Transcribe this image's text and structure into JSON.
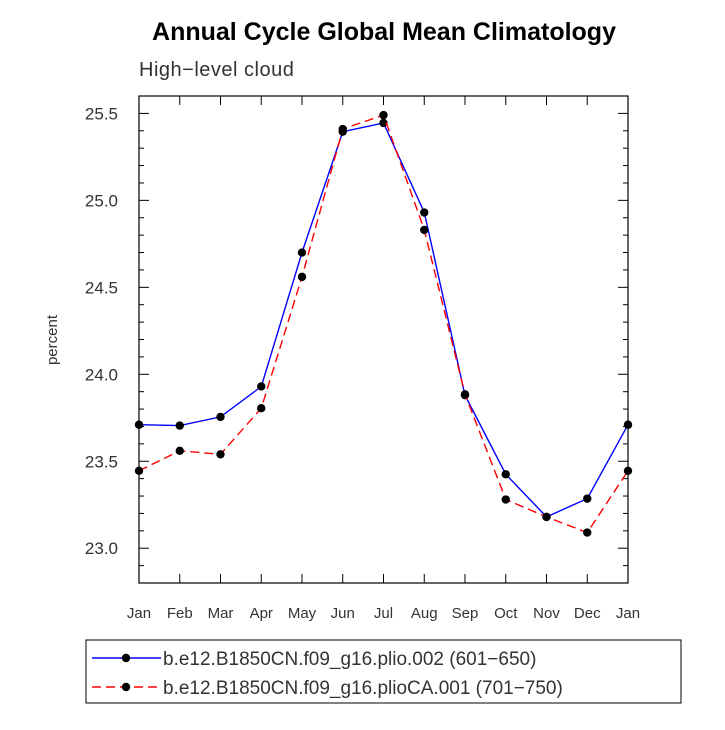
{
  "chart_data": {
    "type": "line",
    "title": "Annual Cycle Global Mean Climatology",
    "subtitle": "High−level cloud",
    "xlabel": "",
    "ylabel": "percent",
    "categories": [
      "Jan",
      "Feb",
      "Mar",
      "Apr",
      "May",
      "Jun",
      "Jul",
      "Aug",
      "Sep",
      "Oct",
      "Nov",
      "Dec",
      "Jan"
    ],
    "ylim": [
      22.8,
      25.6
    ],
    "yticks": [
      "23.0",
      "23.5",
      "24.0",
      "24.5",
      "25.0",
      "25.5"
    ],
    "grid": false,
    "legend_position": "bottom",
    "series": [
      {
        "name": "b.e12.B1850CN.f09_g16.plio.002 (601−650)",
        "color": "#0000ff",
        "dash": "solid",
        "marker": "circle",
        "values": [
          23.71,
          23.705,
          23.755,
          23.93,
          24.7,
          25.395,
          25.445,
          24.93,
          23.88,
          23.425,
          23.18,
          23.285,
          23.71
        ]
      },
      {
        "name": "b.e12.B1850CN.f09_g16.plioCA.001 (701−750)",
        "color": "#ff0000",
        "dash": "dashed",
        "marker": "circle",
        "values": [
          23.445,
          23.56,
          23.54,
          23.805,
          24.56,
          25.41,
          25.49,
          24.83,
          23.885,
          23.28,
          23.18,
          23.09,
          23.445
        ]
      }
    ]
  }
}
